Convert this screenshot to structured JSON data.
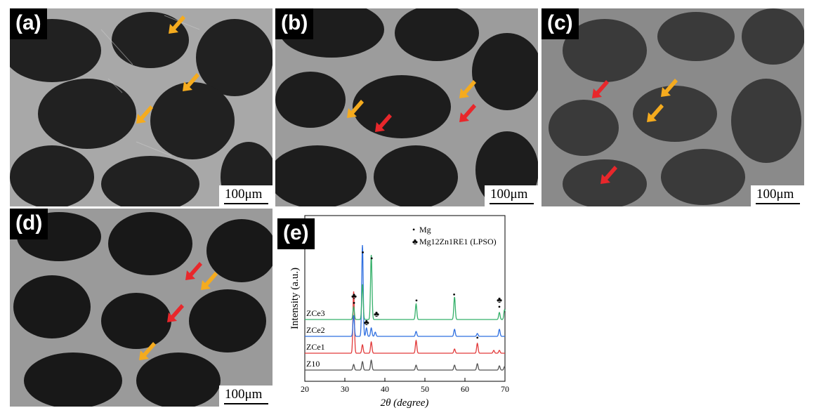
{
  "panels": [
    {
      "id": "a",
      "label": "(a)",
      "scale": "100μm"
    },
    {
      "id": "b",
      "label": "(b)",
      "scale": "100μm"
    },
    {
      "id": "c",
      "label": "(c)",
      "scale": "100μm"
    },
    {
      "id": "d",
      "label": "(d)",
      "scale": "100μm"
    }
  ],
  "panel_e": {
    "label": "(e)"
  },
  "colors": {
    "arrow_yellow": "#f5ab1e",
    "arrow_red": "#e8272b",
    "Z10": "#555555",
    "ZCe1": "#e23a3a",
    "ZCe2": "#2f6fe0",
    "ZCe3": "#35b06a"
  },
  "chart_data": {
    "type": "line",
    "xlabel": "2θ (degree)",
    "ylabel": "Intensity (a.u.)",
    "xlim": [
      20,
      70
    ],
    "xticks": [
      20,
      30,
      40,
      50,
      60,
      70
    ],
    "legend": [
      {
        "marker": "•",
        "text": "Mg"
      },
      {
        "marker": "♣",
        "text": "Mg12Zn1RE1 (LPSO)"
      }
    ],
    "series": [
      {
        "name": "Z10",
        "color": "#555555",
        "offset": 0,
        "peaks": [
          [
            32.2,
            8
          ],
          [
            34.4,
            12
          ],
          [
            36.6,
            14
          ],
          [
            47.8,
            7
          ],
          [
            57.4,
            7
          ],
          [
            63.1,
            9
          ],
          [
            68.6,
            6
          ],
          [
            69.9,
            5
          ]
        ]
      },
      {
        "name": "ZCe1",
        "color": "#e23a3a",
        "offset": 1,
        "peaks": [
          [
            32.2,
            88
          ],
          [
            34.4,
            12
          ],
          [
            36.6,
            16
          ],
          [
            47.8,
            18
          ],
          [
            57.4,
            6
          ],
          [
            63.1,
            14
          ],
          [
            67.2,
            4
          ],
          [
            68.6,
            4
          ]
        ]
      },
      {
        "name": "ZCe2",
        "color": "#2f6fe0",
        "offset": 2,
        "peaks": [
          [
            32.2,
            30
          ],
          [
            34.4,
            130
          ],
          [
            35.4,
            12
          ],
          [
            36.6,
            12
          ],
          [
            37.6,
            6
          ],
          [
            47.8,
            7
          ],
          [
            57.4,
            10
          ],
          [
            63.1,
            4
          ],
          [
            68.6,
            10
          ]
        ]
      },
      {
        "name": "ZCe3",
        "color": "#35b06a",
        "offset": 3,
        "peaks": [
          [
            32.2,
            18
          ],
          [
            34.4,
            50
          ],
          [
            36.6,
            92
          ],
          [
            47.8,
            22
          ],
          [
            57.4,
            32
          ],
          [
            68.6,
            10
          ],
          [
            69.9,
            14
          ]
        ]
      }
    ],
    "annotations": [
      {
        "x": 32.3,
        "series": "ZCe3",
        "marks": [
          "♣",
          "•"
        ]
      },
      {
        "x": 34.5,
        "series": "ZCe2",
        "marks": [
          "•"
        ]
      },
      {
        "x": 36.7,
        "series": "ZCe3",
        "marks": [
          "•"
        ]
      },
      {
        "x": 37.9,
        "series": "ZCe3",
        "marks": [
          "♣"
        ]
      },
      {
        "x": 35.4,
        "series": "ZCe2",
        "marks": [
          "♣"
        ]
      },
      {
        "x": 47.9,
        "series": "ZCe3",
        "marks": [
          "•"
        ]
      },
      {
        "x": 57.3,
        "series": "ZCe3",
        "marks": [
          "•"
        ]
      },
      {
        "x": 63.1,
        "series": "ZCe1",
        "marks": [
          "•"
        ]
      },
      {
        "x": 68.6,
        "series": "ZCe3",
        "marks": [
          "♣",
          "•"
        ]
      }
    ]
  }
}
